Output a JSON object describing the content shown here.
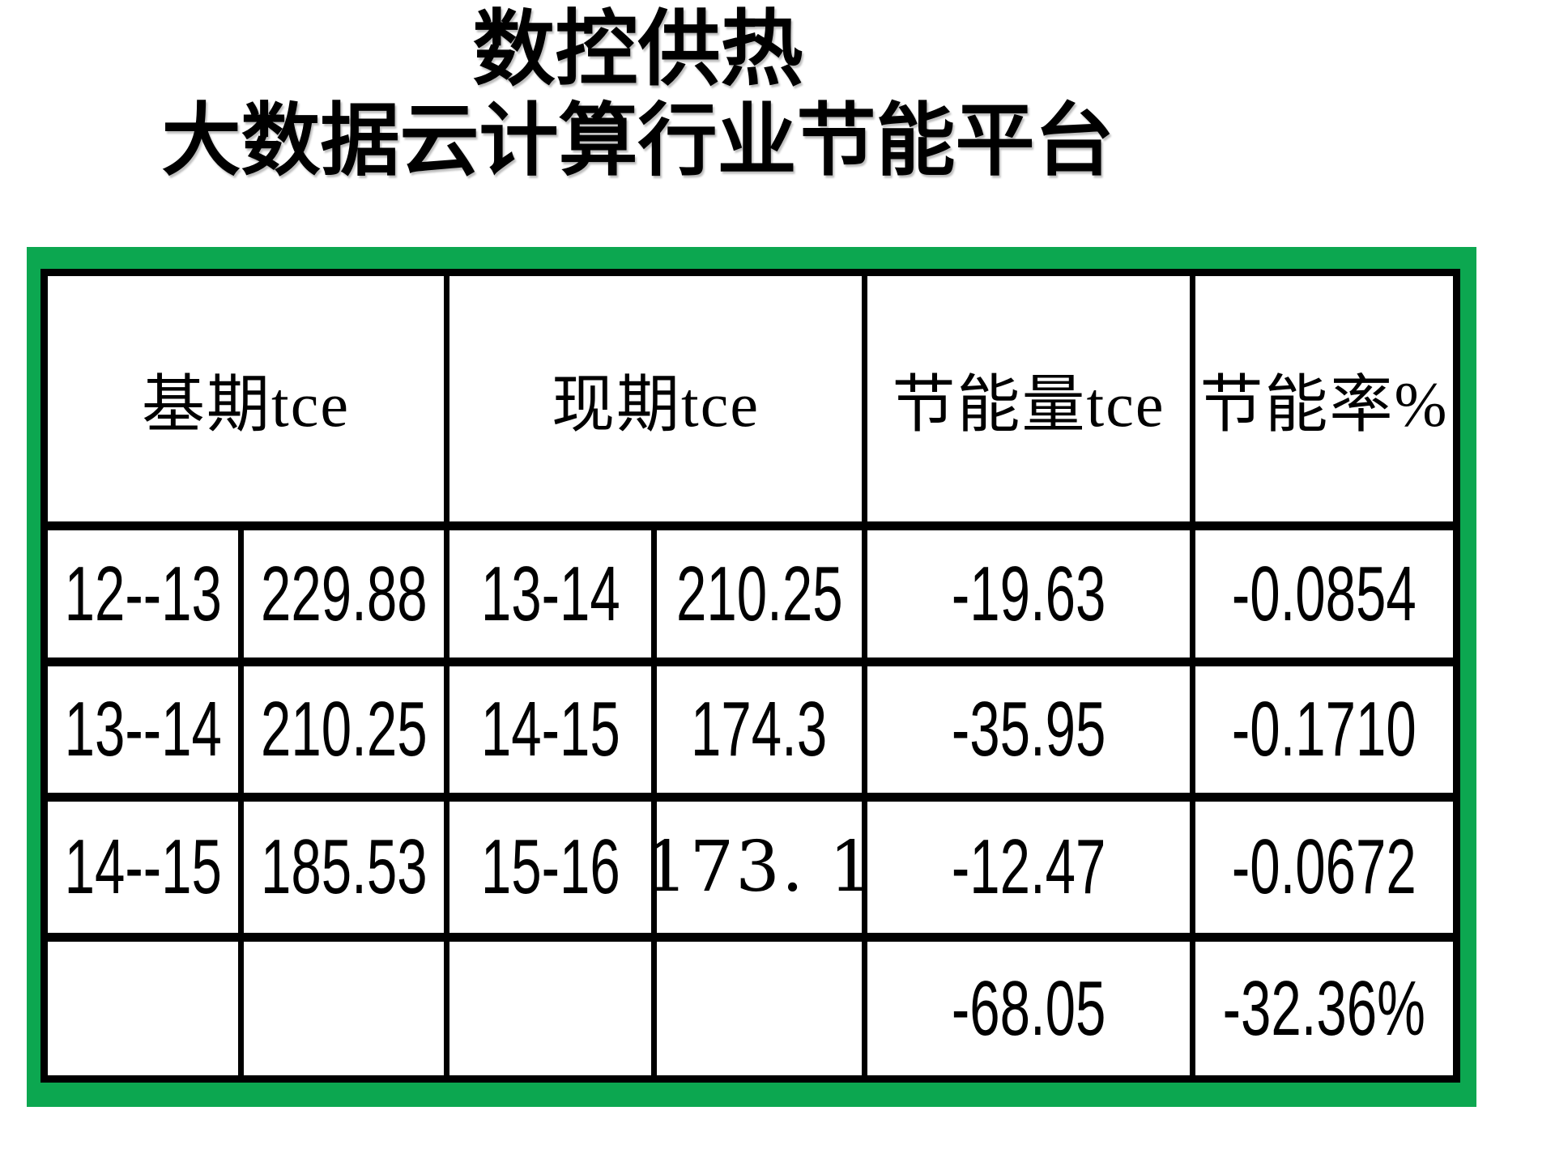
{
  "title": {
    "line1": "数控供热",
    "line2": "大数据云计算行业节能平台"
  },
  "table": {
    "headers": [
      {
        "label": "基期tce",
        "span": 2
      },
      {
        "label": "现期tce",
        "span": 2
      },
      {
        "label": "节能量tce",
        "span": 1
      },
      {
        "label": "节能率%",
        "span": 1
      }
    ],
    "rows": [
      [
        "12--13",
        "229.88",
        "13-14",
        "210.25",
        "-19.63",
        "-0.0854"
      ],
      [
        "13--14",
        "210.25",
        "14-15",
        "174.3",
        "-35.95",
        "-0.1710"
      ],
      [
        "14--15",
        "185.53",
        "15-16",
        "173. 1",
        "-12.47",
        "-0.0672"
      ],
      [
        "",
        "",
        "",
        "",
        "-68.05",
        "-32.36%"
      ]
    ]
  },
  "colors": {
    "frame_green": "#0ca750",
    "table_border": "#000000",
    "page_background": "#ffffff",
    "text": "#000000"
  },
  "chart_data": {
    "type": "table",
    "title": "数控供热 大数据云计算行业节能平台",
    "column_headers": [
      "基期tce",
      "现期tce",
      "节能量tce",
      "节能率%"
    ],
    "header_spans": [
      2,
      2,
      1,
      1
    ],
    "rows": [
      {
        "base_period": "12--13",
        "base_tce": 229.88,
        "current_period": "13-14",
        "current_tce": 210.25,
        "savings_tce": -19.63,
        "savings_rate": -0.0854
      },
      {
        "base_period": "13--14",
        "base_tce": 210.25,
        "current_period": "14-15",
        "current_tce": 174.3,
        "savings_tce": -35.95,
        "savings_rate": -0.171
      },
      {
        "base_period": "14--15",
        "base_tce": 185.53,
        "current_period": "15-16",
        "current_tce": 173.1,
        "savings_tce": -12.47,
        "savings_rate": -0.0672
      }
    ],
    "totals": {
      "savings_tce_total": -68.05,
      "savings_rate_total": "-32.36%"
    }
  }
}
